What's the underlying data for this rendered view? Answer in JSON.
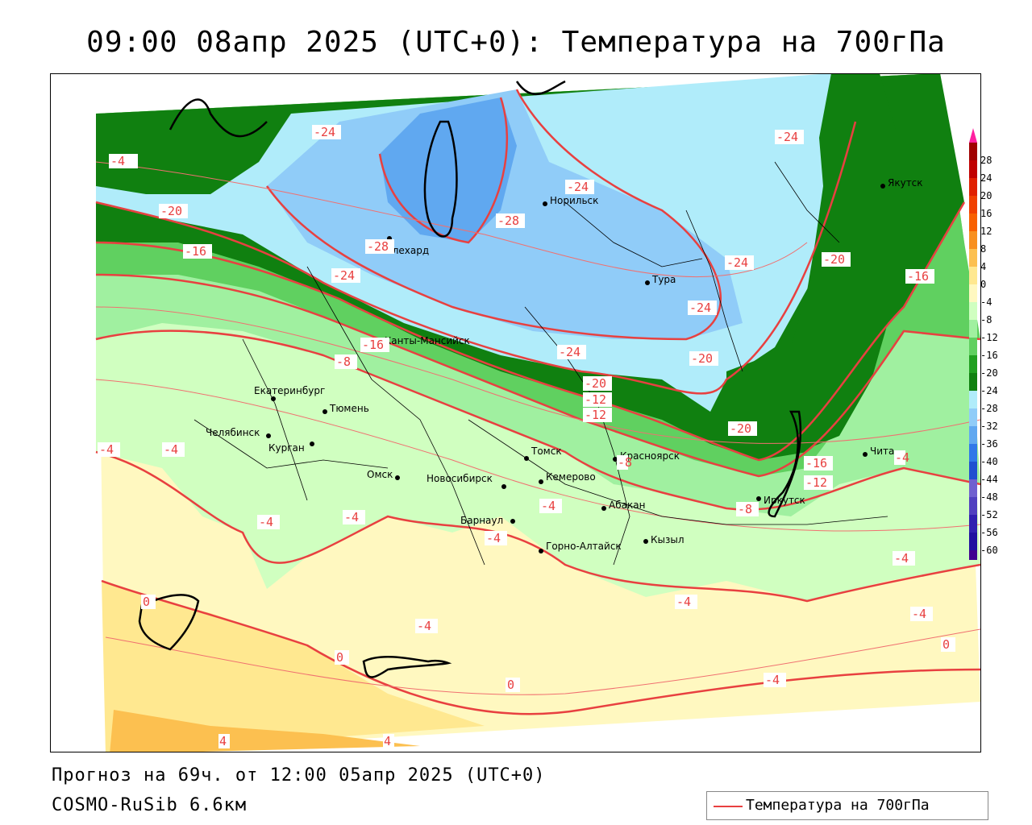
{
  "title": "09:00 08апр 2025 (UTC+0): Температура на 700гПа",
  "forecast_text": "Прогноз на 69ч. от 12:00 05апр 2025 (UTC+0)",
  "model_text": "COSMO-RuSib 6.6км",
  "legend": {
    "label": "Температура на 700гПа",
    "line_color": "#e84040"
  },
  "colorbar": {
    "ticks": [
      "28",
      "24",
      "20",
      "16",
      "12",
      "8",
      "4",
      "0",
      "-4",
      "-8",
      "-12",
      "-16",
      "-20",
      "-24",
      "-28",
      "-32",
      "-36",
      "-40",
      "-44",
      "-48",
      "-52",
      "-56",
      "-60"
    ],
    "colors": [
      "#a00000",
      "#c00000",
      "#e02000",
      "#f04000",
      "#f86000",
      "#f89020",
      "#fcc050",
      "#ffe890",
      "#fff8c0",
      "#d0ffc0",
      "#a0f0a0",
      "#60d060",
      "#20a020",
      "#108010",
      "#b0ecfa",
      "#90ccf8",
      "#60a8f0",
      "#3078e8",
      "#2050d0",
      "#7060d0",
      "#5040c0",
      "#3020b0",
      "#2010a0",
      "#400090"
    ]
  },
  "cities": [
    {
      "name": "Якутск"
    },
    {
      "name": "Норильск"
    },
    {
      "name": "Салехард"
    },
    {
      "name": "Тура"
    },
    {
      "name": "Ханты-Мансийск"
    },
    {
      "name": "Екатеринбург"
    },
    {
      "name": "Тюмень"
    },
    {
      "name": "Челябинск"
    },
    {
      "name": "Курган"
    },
    {
      "name": "Омск"
    },
    {
      "name": "Томск"
    },
    {
      "name": "Новосибирск"
    },
    {
      "name": "Кемерово"
    },
    {
      "name": "Красноярск"
    },
    {
      "name": "Абакан"
    },
    {
      "name": "Барнаул"
    },
    {
      "name": "Горно-Алтайск"
    },
    {
      "name": "Кызыл"
    },
    {
      "name": "Иркутск"
    },
    {
      "name": "Чита"
    }
  ],
  "contour_labels": [
    "-24",
    "-24",
    "-24",
    "-20",
    "-28",
    "-28",
    "-16",
    "-24",
    "-24",
    "-20",
    "-24",
    "-24",
    "-20",
    "-16",
    "-12",
    "-20",
    "-12",
    "-8",
    "-4",
    "-4",
    "-4",
    "-4",
    "-4",
    "-4",
    "0",
    "-4",
    "0",
    "0",
    "-4",
    "-4",
    "-4",
    "0",
    "4",
    "4",
    "-16",
    "-12",
    "-8",
    "-16",
    "-20",
    "-8",
    "-4",
    "-4",
    "-4"
  ]
}
